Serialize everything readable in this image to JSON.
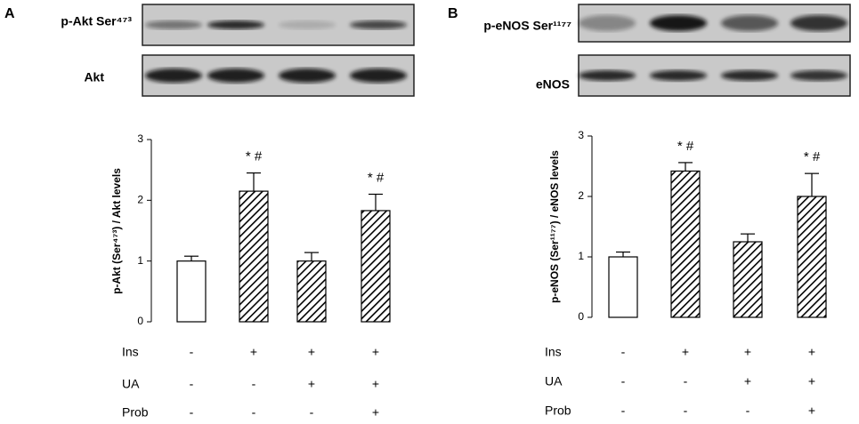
{
  "chart_data": [
    {
      "type": "bar",
      "panel": "A",
      "blot_labels": [
        "p-Akt Ser⁴⁷³",
        "Akt"
      ],
      "ylabel": "p-Akt (Ser⁴⁷³) / Akt levels",
      "values": [
        1.0,
        2.15,
        1.0,
        1.83
      ],
      "errors": [
        0.08,
        0.3,
        0.14,
        0.27
      ],
      "annotations": [
        null,
        "* #",
        null,
        "* #"
      ],
      "patterns": [
        "none",
        "hatch",
        "hatch",
        "hatch"
      ],
      "color": "#000000",
      "ylim": [
        0,
        3
      ],
      "yticks": [
        0,
        1,
        2,
        3
      ],
      "treatments": [
        {
          "name": "Ins",
          "signs": [
            "-",
            "+",
            "+",
            "+"
          ]
        },
        {
          "name": "UA",
          "signs": [
            "-",
            "-",
            "+",
            "+"
          ]
        },
        {
          "name": "Prob",
          "signs": [
            "-",
            "-",
            "-",
            "+"
          ]
        }
      ]
    },
    {
      "type": "bar",
      "panel": "B",
      "blot_labels": [
        "p-eNOS Ser¹¹⁷⁷",
        "eNOS"
      ],
      "ylabel": "p-eNOS (Ser¹¹⁷⁷) / eNOS levels",
      "values": [
        1.0,
        2.42,
        1.25,
        2.0
      ],
      "errors": [
        0.08,
        0.14,
        0.13,
        0.38
      ],
      "annotations": [
        null,
        "* #",
        null,
        "* #"
      ],
      "patterns": [
        "none",
        "hatch",
        "hatch",
        "hatch"
      ],
      "color": "#000000",
      "ylim": [
        0,
        3
      ],
      "yticks": [
        0,
        1,
        2,
        3
      ],
      "treatments": [
        {
          "name": "Ins",
          "signs": [
            "-",
            "+",
            "+",
            "+"
          ]
        },
        {
          "name": "UA",
          "signs": [
            "-",
            "-",
            "+",
            "+"
          ]
        },
        {
          "name": "Prob",
          "signs": [
            "-",
            "-",
            "-",
            "+"
          ]
        }
      ]
    }
  ]
}
